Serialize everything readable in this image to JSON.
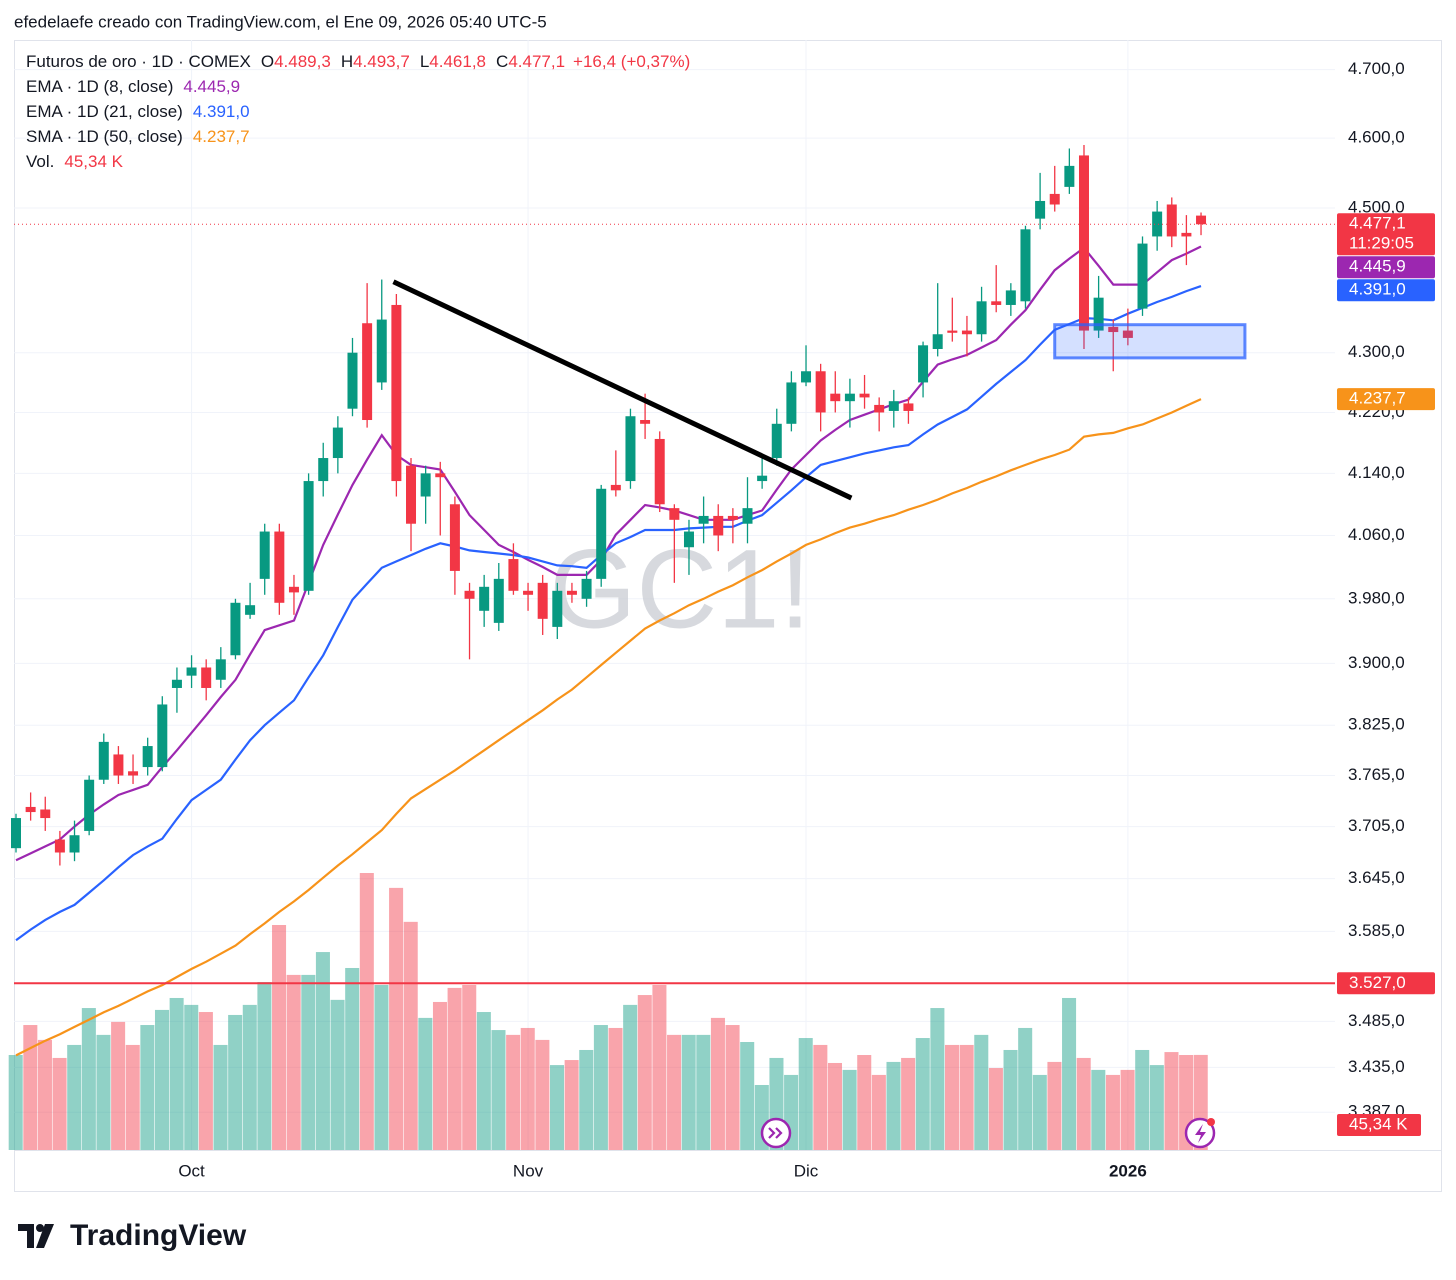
{
  "header": "efedelaefe creado con TradingView.com, el Ene 09, 2026 05:40 UTC-5",
  "footer": "TradingView",
  "chart_data": {
    "type": "candlestick",
    "title": "Futuros de oro · 1D · COMEX",
    "watermark": "GC1!",
    "ohlc_legend": [
      {
        "key": "O",
        "label": "4.489,3"
      },
      {
        "key": "H",
        "label": "4.493,7"
      },
      {
        "key": "L",
        "label": "4.461,8"
      },
      {
        "key": "C",
        "label": "4.477,1"
      }
    ],
    "change_label": "+16,4 (+0,37%)",
    "up_color": "#089981",
    "down_color": "#f23645",
    "log_scale": true,
    "ylim": [
      3347,
      4744
    ],
    "yticks": [
      {
        "value": 4700,
        "label": "4.700,0"
      },
      {
        "value": 4600,
        "label": "4.600,0"
      },
      {
        "value": 4500,
        "label": "4.500,0"
      },
      {
        "value": 4300,
        "label": "4.300,0"
      },
      {
        "value": 4220,
        "label": "4.220,0"
      },
      {
        "value": 4140,
        "label": "4.140,0"
      },
      {
        "value": 4060,
        "label": "4.060,0"
      },
      {
        "value": 3980,
        "label": "3.980,0"
      },
      {
        "value": 3900,
        "label": "3.900,0"
      },
      {
        "value": 3825,
        "label": "3.825,0"
      },
      {
        "value": 3765,
        "label": "3.765,0"
      },
      {
        "value": 3705,
        "label": "3.705,0"
      },
      {
        "value": 3645,
        "label": "3.645,0"
      },
      {
        "value": 3585,
        "label": "3.585,0"
      },
      {
        "value": 3485,
        "label": "3.485,0"
      },
      {
        "value": 3435,
        "label": "3.435,0"
      },
      {
        "value": 3387,
        "label": "3.387,0"
      }
    ],
    "grid": true,
    "categories": [
      null,
      null,
      null,
      null,
      null,
      null,
      null,
      null,
      null,
      null,
      null,
      null,
      "Oct",
      null,
      null,
      null,
      null,
      null,
      null,
      null,
      null,
      null,
      null,
      null,
      null,
      null,
      null,
      null,
      null,
      null,
      null,
      null,
      null,
      null,
      null,
      "Nov",
      null,
      null,
      null,
      null,
      null,
      null,
      null,
      null,
      null,
      null,
      null,
      null,
      null,
      null,
      null,
      null,
      null,
      null,
      "Dic",
      null,
      null,
      null,
      null,
      null,
      null,
      null,
      null,
      null,
      null,
      null,
      null,
      null,
      null,
      null,
      null,
      null,
      null,
      null,
      null,
      null,
      "2026",
      null,
      null,
      null,
      null,
      null
    ],
    "ohlc": [
      [
        3680,
        3720,
        3675,
        3715
      ],
      [
        3728,
        3745,
        3712,
        3722
      ],
      [
        3725,
        3740,
        3700,
        3715
      ],
      [
        3690,
        3700,
        3660,
        3675
      ],
      [
        3675,
        3712,
        3665,
        3695
      ],
      [
        3700,
        3765,
        3695,
        3760
      ],
      [
        3760,
        3815,
        3755,
        3805
      ],
      [
        3790,
        3800,
        3755,
        3765
      ],
      [
        3770,
        3790,
        3755,
        3765
      ],
      [
        3775,
        3810,
        3765,
        3800
      ],
      [
        3775,
        3860,
        3770,
        3850
      ],
      [
        3870,
        3895,
        3840,
        3880
      ],
      [
        3885,
        3910,
        3870,
        3895
      ],
      [
        3895,
        3905,
        3855,
        3870
      ],
      [
        3880,
        3920,
        3870,
        3905
      ],
      [
        3910,
        3980,
        3905,
        3975
      ],
      [
        3960,
        4000,
        3955,
        3972
      ],
      [
        4005,
        4075,
        3985,
        4065
      ],
      [
        4065,
        4075,
        3960,
        3975
      ],
      [
        3995,
        4010,
        3960,
        3988
      ],
      [
        3990,
        4140,
        3985,
        4130
      ],
      [
        4130,
        4180,
        4110,
        4160
      ],
      [
        4160,
        4215,
        4140,
        4200
      ],
      [
        4225,
        4320,
        4215,
        4300
      ],
      [
        4340,
        4395,
        4200,
        4210
      ],
      [
        4260,
        4400,
        4250,
        4345
      ],
      [
        4365,
        4380,
        4110,
        4130
      ],
      [
        4150,
        4160,
        4040,
        4075
      ],
      [
        4110,
        4150,
        4075,
        4140
      ],
      [
        4140,
        4155,
        4060,
        4135
      ],
      [
        4100,
        4110,
        3985,
        4015
      ],
      [
        3990,
        4000,
        3905,
        3980
      ],
      [
        3965,
        4010,
        3945,
        3995
      ],
      [
        3950,
        4025,
        3940,
        4005
      ],
      [
        4030,
        4050,
        3985,
        3990
      ],
      [
        3990,
        4000,
        3965,
        3985
      ],
      [
        4000,
        4010,
        3935,
        3955
      ],
      [
        3945,
        4000,
        3930,
        3990
      ],
      [
        3990,
        4000,
        3975,
        3985
      ],
      [
        3980,
        4015,
        3970,
        4005
      ],
      [
        4005,
        4125,
        3995,
        4120
      ],
      [
        4125,
        4170,
        4110,
        4118
      ],
      [
        4130,
        4225,
        4120,
        4215
      ],
      [
        4210,
        4245,
        4185,
        4205
      ],
      [
        4185,
        4195,
        4090,
        4100
      ],
      [
        4095,
        4100,
        4000,
        4080
      ],
      [
        4045,
        4080,
        4010,
        4065
      ],
      [
        4075,
        4110,
        4050,
        4085
      ],
      [
        4085,
        4100,
        4040,
        4060
      ],
      [
        4085,
        4095,
        4050,
        4080
      ],
      [
        4075,
        4135,
        4050,
        4095
      ],
      [
        4130,
        4160,
        4120,
        4137
      ],
      [
        4160,
        4225,
        4150,
        4205
      ],
      [
        4205,
        4275,
        4195,
        4260
      ],
      [
        4260,
        4310,
        4255,
        4275
      ],
      [
        4275,
        4285,
        4195,
        4220
      ],
      [
        4245,
        4275,
        4220,
        4235
      ],
      [
        4235,
        4265,
        4200,
        4245
      ],
      [
        4245,
        4270,
        4225,
        4240
      ],
      [
        4230,
        4240,
        4195,
        4220
      ],
      [
        4222,
        4250,
        4200,
        4235
      ],
      [
        4232,
        4240,
        4205,
        4222
      ],
      [
        4260,
        4315,
        4240,
        4310
      ],
      [
        4305,
        4395,
        4295,
        4325
      ],
      [
        4330,
        4375,
        4315,
        4327
      ],
      [
        4330,
        4350,
        4295,
        4325
      ],
      [
        4325,
        4390,
        4315,
        4370
      ],
      [
        4370,
        4420,
        4355,
        4365
      ],
      [
        4365,
        4395,
        4350,
        4385
      ],
      [
        4370,
        4475,
        4360,
        4470
      ],
      [
        4485,
        4550,
        4470,
        4510
      ],
      [
        4520,
        4560,
        4495,
        4505
      ],
      [
        4530,
        4585,
        4520,
        4560
      ],
      [
        4575,
        4590,
        4305,
        4330
      ],
      [
        4330,
        4405,
        4320,
        4375
      ],
      [
        4335,
        4345,
        4275,
        4328
      ],
      [
        4330,
        4360,
        4310,
        4320
      ],
      [
        4360,
        4460,
        4350,
        4450
      ],
      [
        4460,
        4510,
        4440,
        4495
      ],
      [
        4505,
        4515,
        4445,
        4460
      ],
      [
        4465,
        4490,
        4420,
        4460
      ],
      [
        4489.3,
        4493.7,
        4461.8,
        4477.1
      ]
    ],
    "last_price_label": "4.477,1",
    "countdown": "11:29:05",
    "series": [
      {
        "name": "EMA · 1D (8, close)",
        "color": "#9c27b0",
        "value_label": "4.445,9",
        "values": [
          3666,
          3674,
          3682,
          3690,
          3705,
          3719,
          3731,
          3742,
          3748,
          3754,
          3775,
          3795,
          3816,
          3837,
          3859,
          3880,
          3911,
          3941,
          3947,
          3953,
          4000,
          4048,
          4087,
          4125,
          4158,
          4190,
          4164,
          4151,
          4148,
          4145,
          4116,
          4086,
          4067,
          4048,
          4039,
          4029,
          4020,
          4010,
          4010,
          4010,
          4029,
          4061,
          4080,
          4099,
          4096,
          4092,
          4086,
          4080,
          4080,
          4080,
          4086,
          4092,
          4119,
          4145,
          4164,
          4183,
          4197,
          4210,
          4217,
          4224,
          4231,
          4237,
          4261,
          4284,
          4291,
          4297,
          4307,
          4317,
          4338,
          4358,
          4386,
          4413,
          4429,
          4444,
          4419,
          4393,
          4393,
          4393,
          4410,
          4427,
          4436,
          4445.9
        ]
      },
      {
        "name": "EMA · 1D (21, close)",
        "color": "#2962ff",
        "value_label": "4.391,0",
        "values": [
          3575,
          3587,
          3598,
          3607,
          3615,
          3629,
          3643,
          3658,
          3672,
          3682,
          3691,
          3714,
          3736,
          3748,
          3760,
          3784,
          3807,
          3825,
          3840,
          3855,
          3883,
          3910,
          3945,
          3979,
          3999,
          4019,
          4027,
          4035,
          4043,
          4050,
          4046,
          4041,
          4039,
          4037,
          4035,
          4032,
          4027,
          4022,
          4021,
          4019,
          4035,
          4050,
          4058,
          4067,
          4067,
          4067,
          4069,
          4070,
          4071,
          4071,
          4079,
          4086,
          4102,
          4118,
          4135,
          4151,
          4156,
          4161,
          4166,
          4170,
          4174,
          4177,
          4191,
          4204,
          4214,
          4224,
          4241,
          4258,
          4274,
          4290,
          4311,
          4331,
          4339,
          4347,
          4346,
          4344,
          4353,
          4361,
          4369,
          4376,
          4384,
          4391
        ]
      },
      {
        "name": "SMA · 1D (50, close)",
        "color": "#f7931a",
        "value_label": "4.237,7",
        "values": [
          3448,
          3456,
          3464,
          3471,
          3479,
          3487,
          3495,
          3502,
          3510,
          3518,
          3525,
          3534,
          3543,
          3551,
          3560,
          3569,
          3582,
          3594,
          3607,
          3619,
          3632,
          3646,
          3660,
          3673,
          3687,
          3701,
          3720,
          3738,
          3749,
          3760,
          3771,
          3783,
          3795,
          3807,
          3819,
          3831,
          3843,
          3856,
          3868,
          3883,
          3898,
          3913,
          3928,
          3943,
          3953,
          3962,
          3972,
          3980,
          3989,
          3997,
          4007,
          4016,
          4027,
          4037,
          4048,
          4055,
          4063,
          4070,
          4075,
          4081,
          4086,
          4093,
          4099,
          4106,
          4114,
          4121,
          4129,
          4136,
          4144,
          4151,
          4158,
          4164,
          4171,
          4188,
          4191,
          4193,
          4199,
          4204,
          4212,
          4220,
          4229,
          4237.7
        ]
      }
    ],
    "volume": {
      "name": "Vol.",
      "value_label": "45,34 K",
      "values": [
        45.3,
        59.6,
        52.5,
        43.9,
        50.1,
        67.7,
        54.9,
        61.1,
        50.1,
        59.6,
        66.8,
        72.5,
        69.2,
        65.8,
        50.1,
        64.4,
        69.2,
        80.1,
        107.3,
        83.5,
        83.5,
        94.4,
        71.6,
        86.8,
        132.1,
        78.7,
        125.0,
        108.8,
        63.0,
        70.6,
        77.3,
        78.7,
        65.8,
        57.2,
        54.9,
        58.2,
        52.5,
        40.5,
        42.9,
        47.7,
        59.6,
        58.2,
        69.2,
        73.9,
        78.7,
        54.9,
        54.9,
        54.9,
        63.0,
        59.6,
        51.5,
        31.0,
        43.9,
        35.8,
        53.4,
        50.1,
        41.5,
        38.2,
        45.3,
        35.8,
        42.0,
        43.9,
        53.4,
        67.7,
        50.1,
        50.1,
        54.9,
        39.1,
        47.7,
        58.2,
        35.8,
        42.0,
        72.5,
        43.9,
        38.2,
        35.8,
        38.2,
        47.7,
        40.5,
        46.7,
        45.3,
        45.34
      ]
    },
    "hline": {
      "value": 3527,
      "label": "3.527,0",
      "color": "#f23645"
    },
    "trendline": {
      "x": [
        25.8,
        57.1
      ],
      "y": [
        4397,
        4108
      ],
      "color": "#000000"
    },
    "zone": {
      "x": [
        71,
        84
      ],
      "y": [
        4293,
        4338
      ],
      "color": "#2962ff"
    }
  }
}
